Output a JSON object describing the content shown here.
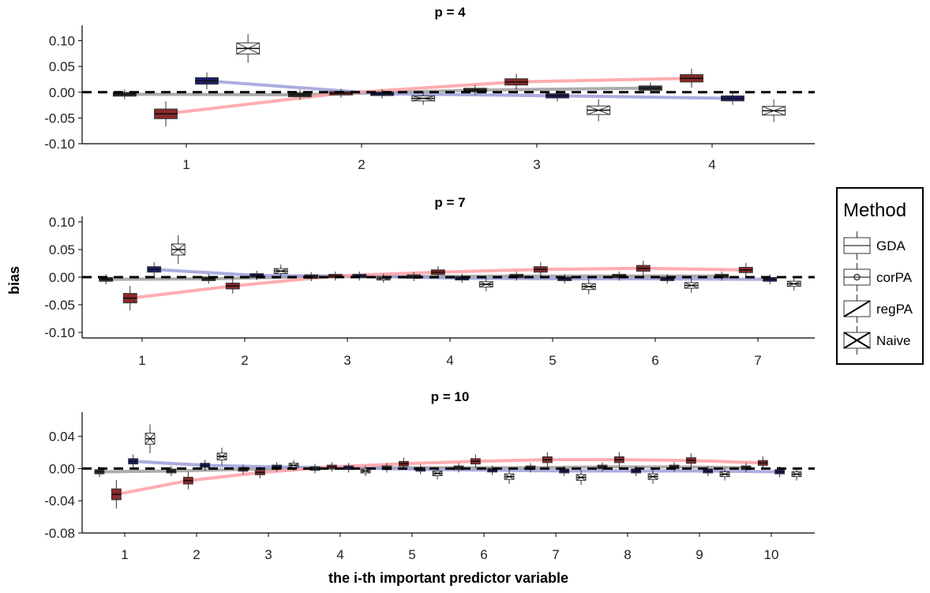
{
  "chart_data": {
    "type": "box",
    "xlabel": "the i-th important predictor variable",
    "ylabel": "bias",
    "legend": {
      "title": "Method",
      "placement": "right",
      "entries": [
        "GDA",
        "corPA",
        "regPA",
        "Naive"
      ]
    },
    "colors": {
      "GDA": "#9e9e9e",
      "corPA": "#ff9ea3",
      "regPA": "#9d9ddb",
      "Naive": "#222222",
      "box_fill_corPA": "#8b2a2a",
      "box_fill_regPA": "#1e1e6e",
      "box_fill_GDA": "#333333"
    },
    "grid": false,
    "reference_line": 0,
    "panels": [
      {
        "title": "p = 4",
        "ylim": [
          -0.1,
          0.13
        ],
        "yticks": [
          "0.10",
          "0.05",
          "0.00",
          "-0.05",
          "-0.10"
        ],
        "ytick_values": [
          0.1,
          0.05,
          0.0,
          -0.05,
          -0.1
        ],
        "categories": [
          "1",
          "2",
          "3",
          "4"
        ],
        "series": [
          {
            "name": "GDA",
            "median": [
              -0.004,
              -0.005,
              0.004,
              0.008
            ]
          },
          {
            "name": "corPA",
            "median": [
              -0.042,
              -0.002,
              0.02,
              0.027
            ]
          },
          {
            "name": "regPA",
            "median": [
              0.022,
              -0.003,
              -0.007,
              -0.012
            ]
          },
          {
            "name": "Naive",
            "median": [
              0.085,
              -0.012,
              -0.035,
              -0.036
            ]
          }
        ]
      },
      {
        "title": "p = 7",
        "ylim": [
          -0.11,
          0.11
        ],
        "yticks": [
          "0.10",
          "0.05",
          "0.00",
          "-0.05",
          "-0.10"
        ],
        "ytick_values": [
          0.1,
          0.05,
          0.0,
          -0.05,
          -0.1
        ],
        "categories": [
          "1",
          "2",
          "3",
          "4",
          "5",
          "6",
          "7"
        ],
        "series": [
          {
            "name": "GDA",
            "median": [
              -0.004,
              -0.003,
              0.001,
              0.001,
              0.002,
              0.002,
              0.002
            ]
          },
          {
            "name": "corPA",
            "median": [
              -0.038,
              -0.016,
              0.002,
              0.009,
              0.014,
              0.016,
              0.013
            ]
          },
          {
            "name": "regPA",
            "median": [
              0.014,
              0.003,
              0.002,
              -0.002,
              -0.003,
              -0.003,
              -0.004
            ]
          },
          {
            "name": "Naive",
            "median": [
              0.05,
              0.011,
              -0.002,
              -0.013,
              -0.017,
              -0.015,
              -0.012
            ]
          }
        ]
      },
      {
        "title": "p = 10",
        "ylim": [
          -0.08,
          0.07
        ],
        "yticks": [
          "0.04",
          "0.00",
          "-0.04",
          "-0.08"
        ],
        "ytick_values": [
          0.04,
          0.0,
          -0.04,
          -0.08
        ],
        "categories": [
          "1",
          "2",
          "3",
          "4",
          "5",
          "6",
          "7",
          "8",
          "9",
          "10"
        ],
        "series": [
          {
            "name": "GDA",
            "median": [
              -0.004,
              -0.003,
              -0.001,
              0.0,
              0.001,
              0.001,
              0.001,
              0.002,
              0.002,
              0.001
            ]
          },
          {
            "name": "corPA",
            "median": [
              -0.032,
              -0.015,
              -0.005,
              0.002,
              0.006,
              0.009,
              0.011,
              0.011,
              0.01,
              0.007
            ]
          },
          {
            "name": "regPA",
            "median": [
              0.009,
              0.004,
              0.002,
              0.001,
              -0.001,
              -0.002,
              -0.003,
              -0.003,
              -0.003,
              -0.004
            ]
          },
          {
            "name": "Naive",
            "median": [
              0.037,
              0.015,
              0.004,
              -0.003,
              -0.006,
              -0.01,
              -0.011,
              -0.01,
              -0.007,
              -0.007
            ]
          }
        ]
      }
    ]
  }
}
